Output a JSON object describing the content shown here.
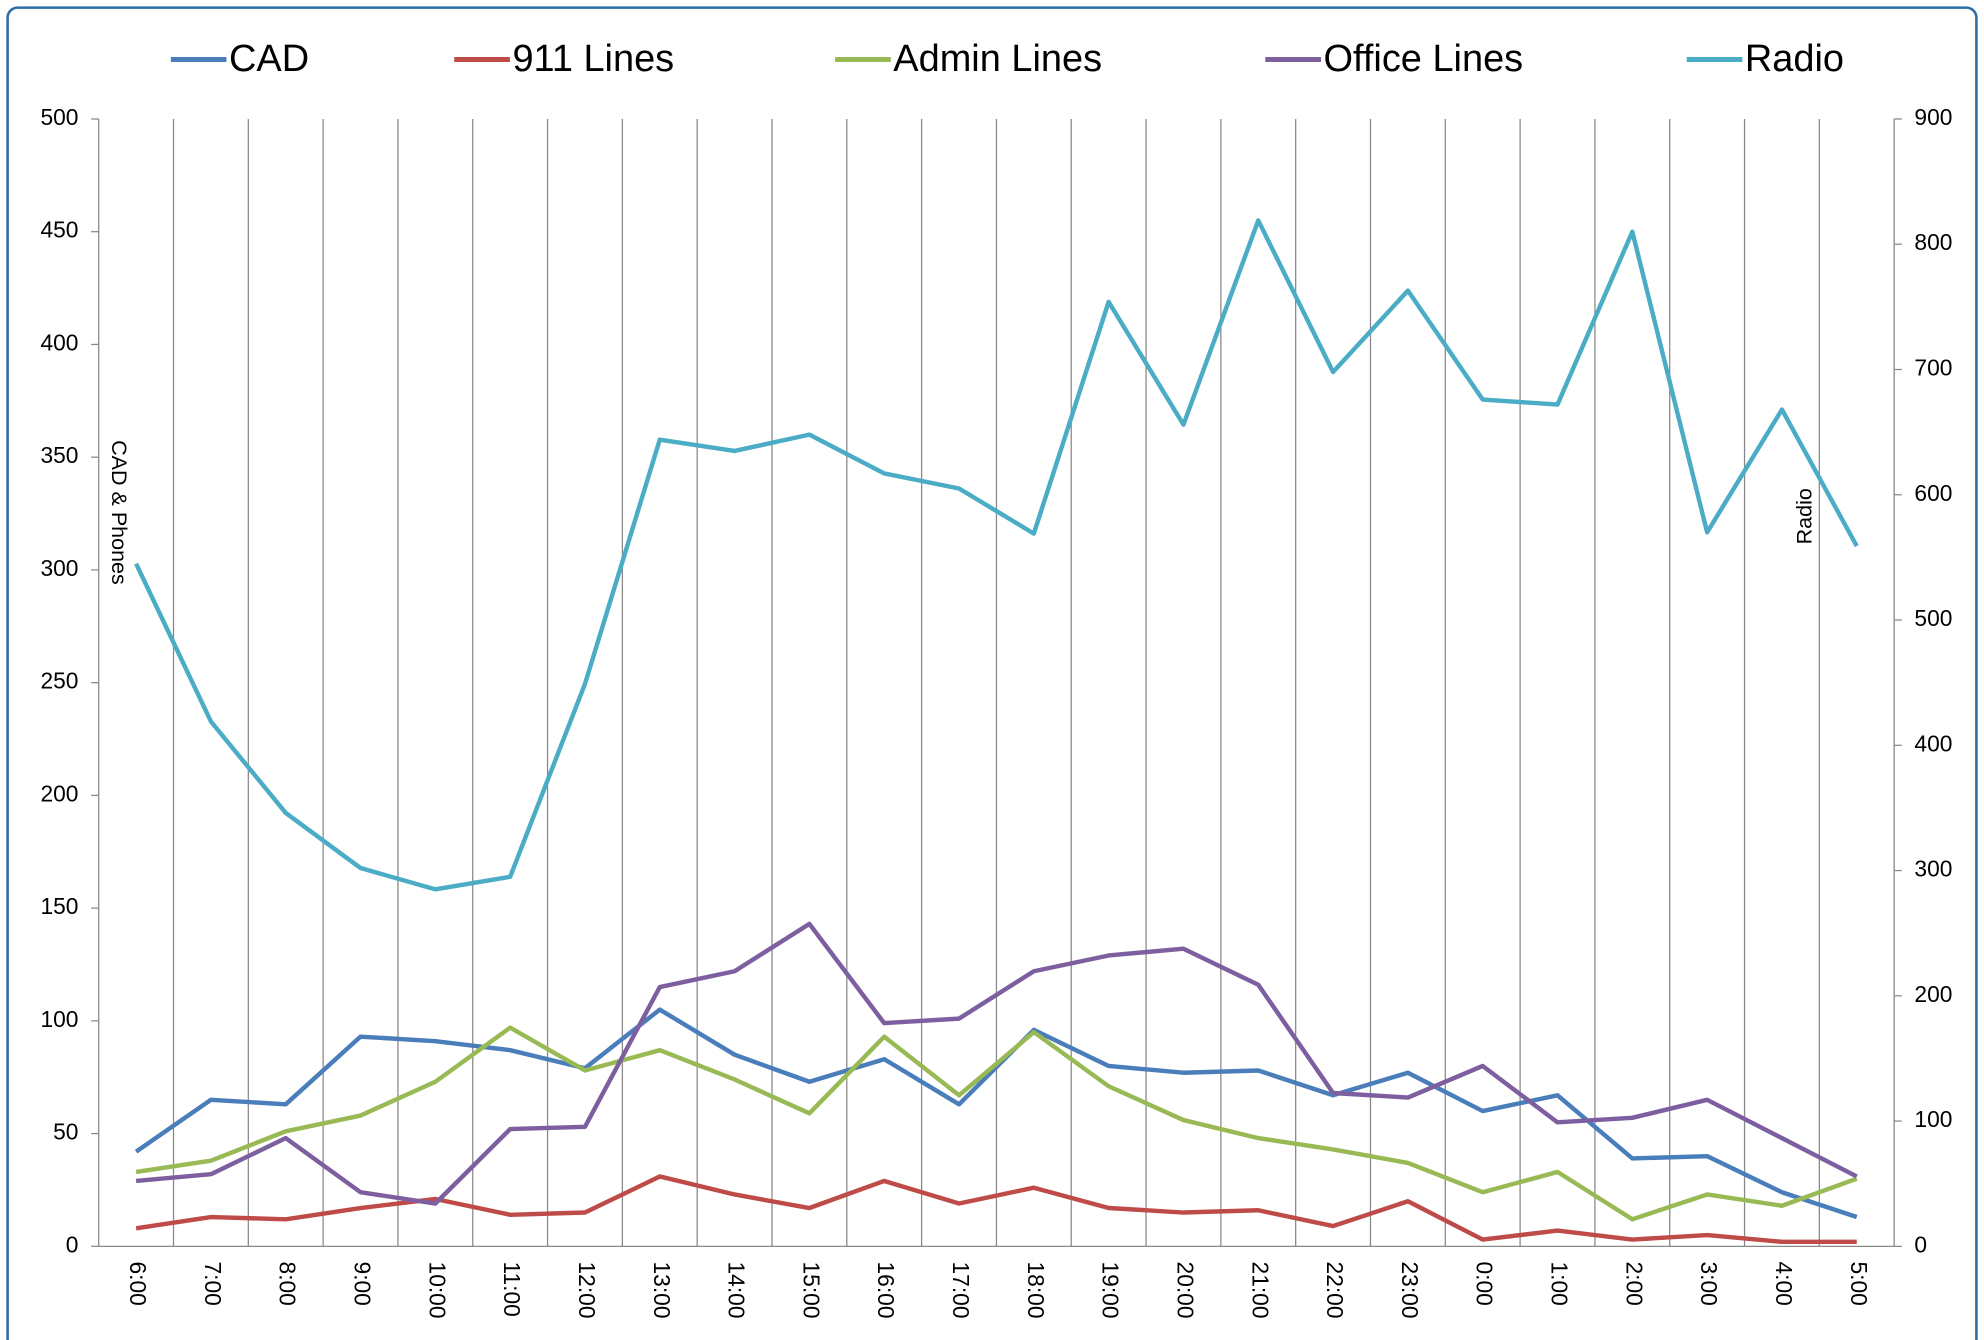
{
  "chart_data": {
    "type": "line",
    "categories": [
      "6:00",
      "7:00",
      "8:00",
      "9:00",
      "10:00",
      "11:00",
      "12:00",
      "13:00",
      "14:00",
      "15:00",
      "16:00",
      "17:00",
      "18:00",
      "19:00",
      "20:00",
      "21:00",
      "22:00",
      "23:00",
      "0:00",
      "1:00",
      "2:00",
      "3:00",
      "4:00",
      "5:00"
    ],
    "series": [
      {
        "name": "CAD",
        "color": "#4a7ebb",
        "values": [
          42,
          65,
          63,
          93,
          91,
          87,
          79,
          105,
          85,
          73,
          83,
          63,
          96,
          80,
          77,
          78,
          67,
          77,
          60,
          67,
          39,
          40,
          24,
          13
        ]
      },
      {
        "name": "911 Lines",
        "color": "#be4b48",
        "values": [
          8,
          13,
          12,
          17,
          21,
          14,
          15,
          31,
          23,
          17,
          29,
          19,
          26,
          17,
          15,
          16,
          9,
          20,
          3,
          7,
          3,
          5,
          2,
          2
        ]
      },
      {
        "name": "Admin Lines",
        "color": "#98b954",
        "values": [
          33,
          38,
          51,
          58,
          73,
          97,
          78,
          87,
          74,
          59,
          93,
          67,
          95,
          71,
          56,
          48,
          43,
          37,
          24,
          33,
          12,
          23,
          18,
          30
        ]
      },
      {
        "name": "Office Lines",
        "color": "#7d5fa0",
        "values": [
          29,
          32,
          48,
          24,
          19,
          52,
          53,
          115,
          122,
          143,
          99,
          101,
          122,
          129,
          132,
          116,
          68,
          66,
          80,
          55,
          57,
          65,
          48,
          31
        ]
      },
      {
        "name": "Radio",
        "color": "#4bacc6",
        "axis": "y2",
        "values": [
          545,
          419,
          346,
          302,
          285,
          295,
          449,
          644,
          635,
          648,
          617,
          605,
          569,
          754,
          656,
          819,
          698,
          763,
          676,
          672,
          810,
          570,
          668,
          559
        ]
      }
    ],
    "ylabel": "CAD & Phones",
    "y2label": "Radio",
    "ylim": [
      0,
      500
    ],
    "yticks": [
      0,
      50,
      100,
      150,
      200,
      250,
      300,
      350,
      400,
      450,
      500
    ],
    "y2lim": [
      0,
      900
    ],
    "y2ticks": [
      0,
      100,
      200,
      300,
      400,
      500,
      600,
      700,
      800,
      900
    ],
    "legend": "top"
  }
}
